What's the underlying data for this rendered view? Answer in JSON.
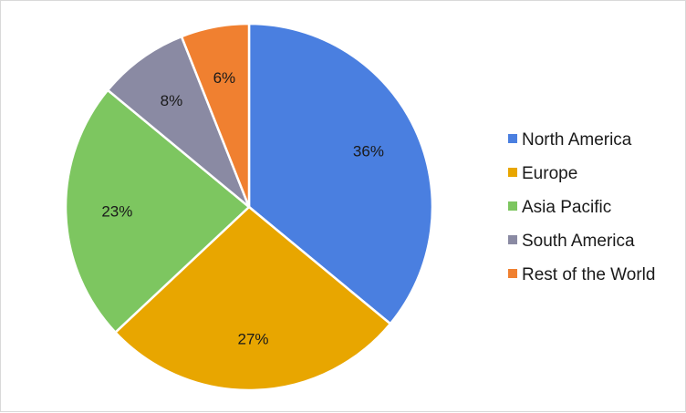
{
  "chart_data": {
    "type": "pie",
    "title": "",
    "categories": [
      "North America",
      "Europe",
      "Asia Pacific",
      "South America",
      "Rest of the World"
    ],
    "values": [
      36,
      27,
      23,
      8,
      6
    ],
    "labels": [
      "36%",
      "27%",
      "23%",
      "8%",
      "6%"
    ],
    "colors": [
      "#4a7fe0",
      "#e8a600",
      "#7dc660",
      "#8a8aa3",
      "#f08030"
    ],
    "start_angle_deg": 0,
    "direction": "clockwise",
    "legend": {
      "position": "right"
    },
    "grid": false
  }
}
